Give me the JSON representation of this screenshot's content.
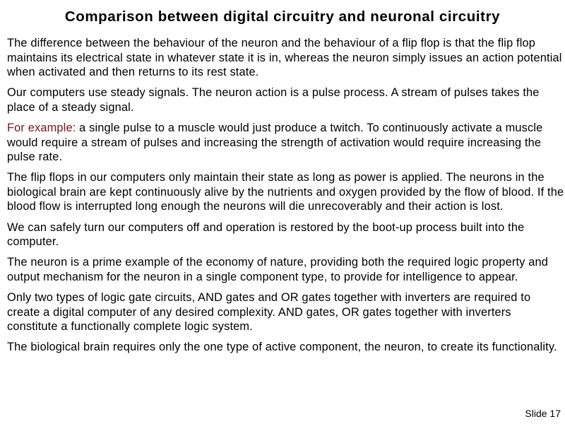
{
  "slide": {
    "title": "Comparison between digital circuitry and neuronal circuitry",
    "number_label": "Slide 17",
    "accent_color": "#7a1020"
  },
  "paragraphs": [
    {
      "text": "The difference between the behaviour of the neuron and the behaviour of a flip flop is that the flip flop maintains its electrical state in whatever state it is in, whereas the neuron simply issues an action potential when activated and then returns to its rest state."
    },
    {
      "text": "Our computers use steady signals. The neuron action is a pulse process. A stream of pulses takes the place of a steady signal."
    },
    {
      "lead": "For example:",
      "text": " a single pulse to a muscle would just produce a twitch.  To continuously activate a muscle would require a stream of pulses and increasing the strength of activation would require increasing the pulse rate."
    },
    {
      "text": "The flip flops in our computers only maintain their state as long as power is applied. The neurons in the biological brain are kept continuously alive by the nutrients and oxygen provided by the flow of blood. If the blood flow is interrupted long enough the neurons will die unrecoverably and their action is lost."
    },
    {
      "text": "We can safely turn our computers off and operation is restored by the boot-up process built into the computer."
    },
    {
      "text": "The neuron is a prime example of the economy of nature, providing both the required logic property and output mechanism for the neuron in a single component type, to provide for intelligence to appear."
    },
    {
      "text": "Only two types of logic gate circuits, AND gates and OR gates together with inverters are required to create a digital computer of any desired complexity. AND gates, OR gates together with inverters constitute a functionally complete logic system."
    },
    {
      "text": "The biological brain requires only the one type of active component, the neuron, to create its functionality."
    }
  ]
}
